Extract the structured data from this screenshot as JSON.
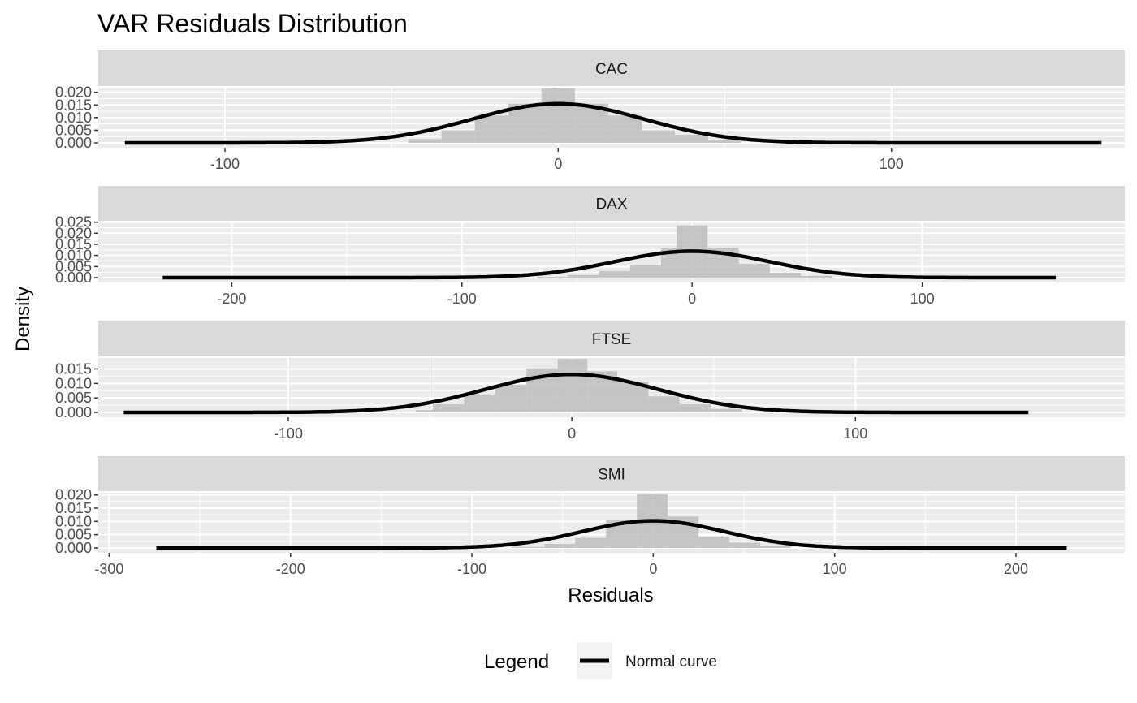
{
  "chart_data": {
    "type": "histogram-facets",
    "title": "VAR Residuals Distribution",
    "xlabel": "Residuals",
    "ylabel": "Density",
    "legend": {
      "title": "Legend",
      "items": [
        {
          "label": "Normal curve",
          "color": "#000000"
        }
      ],
      "position": "bottom"
    },
    "style": {
      "panel_background": "#ebebeb",
      "strip_background": "#d9d9d9",
      "grid_color": "#ffffff",
      "bar_fill": "#bdbdbd",
      "curve_color": "#000000"
    },
    "panels": [
      {
        "name": "CAC",
        "xlim": [
          -138,
          170
        ],
        "ylim": [
          0,
          0.0215
        ],
        "yticks": [
          0.0,
          0.005,
          0.01,
          0.015,
          0.02
        ],
        "ytick_labels": [
          "0.000",
          "0.005",
          "0.010",
          "0.015",
          "0.020"
        ],
        "xticks": [
          -100,
          0,
          100
        ],
        "xtick_labels": [
          "-100",
          "0",
          "100"
        ],
        "bins": [
          {
            "x0": -45,
            "x1": -35,
            "density": 0.0015
          },
          {
            "x0": -35,
            "x1": -25,
            "density": 0.005
          },
          {
            "x0": -25,
            "x1": -15,
            "density": 0.0108
          },
          {
            "x0": -15,
            "x1": -5,
            "density": 0.0155
          },
          {
            "x0": -5,
            "x1": 5,
            "density": 0.0215
          },
          {
            "x0": 5,
            "x1": 15,
            "density": 0.0155
          },
          {
            "x0": 15,
            "x1": 25,
            "density": 0.0108
          },
          {
            "x0": 25,
            "x1": 35,
            "density": 0.005
          },
          {
            "x0": 35,
            "x1": 45,
            "density": 0.0032
          },
          {
            "x0": 45,
            "x1": 55,
            "density": 0.0012
          }
        ],
        "normal": {
          "mean": 0,
          "sd": 25.8,
          "x_range": [
            -130,
            163
          ]
        }
      },
      {
        "name": "DAX",
        "xlim": [
          -258,
          188
        ],
        "ylim": [
          0,
          0.0245
        ],
        "yticks": [
          0.0,
          0.005,
          0.01,
          0.015,
          0.02,
          0.025
        ],
        "ytick_labels": [
          "0.000",
          "0.005",
          "0.010",
          "0.015",
          "0.020",
          "0.025"
        ],
        "xticks": [
          -200,
          -100,
          0,
          100
        ],
        "xtick_labels": [
          "-200",
          "-100",
          "0",
          "100"
        ],
        "bins": [
          {
            "x0": -67.5,
            "x1": -54,
            "density": 0.0004
          },
          {
            "x0": -54,
            "x1": -40.5,
            "density": 0.0012
          },
          {
            "x0": -40.5,
            "x1": -27,
            "density": 0.003
          },
          {
            "x0": -27,
            "x1": -13.5,
            "density": 0.0055
          },
          {
            "x0": -13.5,
            "x1": -6.75,
            "density": 0.0135
          },
          {
            "x0": -6.75,
            "x1": 6.75,
            "density": 0.0235
          },
          {
            "x0": 6.75,
            "x1": 20.25,
            "density": 0.0135
          },
          {
            "x0": 20.25,
            "x1": 33.75,
            "density": 0.0062
          },
          {
            "x0": 33.75,
            "x1": 47.25,
            "density": 0.0022
          },
          {
            "x0": 47.25,
            "x1": 60.75,
            "density": 0.0008
          }
        ],
        "normal": {
          "mean": 0,
          "sd": 33.5,
          "x_range": [
            -230,
            158
          ]
        }
      },
      {
        "name": "FTSE",
        "xlim": [
          -167,
          195
        ],
        "ylim": [
          0,
          0.0185
        ],
        "yticks": [
          0.0,
          0.005,
          0.01,
          0.015
        ],
        "ytick_labels": [
          "0.000",
          "0.005",
          "0.010",
          "0.015"
        ],
        "xticks": [
          -100,
          0,
          100
        ],
        "xtick_labels": [
          "-100",
          "0",
          "100"
        ],
        "bins": [
          {
            "x0": -55,
            "x1": -49,
            "density": 0.0008
          },
          {
            "x0": -49,
            "x1": -38,
            "density": 0.0028
          },
          {
            "x0": -38,
            "x1": -27,
            "density": 0.0062
          },
          {
            "x0": -27,
            "x1": -16,
            "density": 0.0095
          },
          {
            "x0": -16,
            "x1": -5,
            "density": 0.0152
          },
          {
            "x0": -5,
            "x1": 5.5,
            "density": 0.0185
          },
          {
            "x0": 5.5,
            "x1": 16,
            "density": 0.0142
          },
          {
            "x0": 16,
            "x1": 27,
            "density": 0.0105
          },
          {
            "x0": 27,
            "x1": 38,
            "density": 0.0055
          },
          {
            "x0": 38,
            "x1": 49,
            "density": 0.0028
          },
          {
            "x0": 49,
            "x1": 60,
            "density": 0.0012
          }
        ],
        "normal": {
          "mean": 0,
          "sd": 30.4,
          "x_range": [
            -158,
            161
          ]
        }
      },
      {
        "name": "SMI",
        "xlim": [
          -306,
          260
        ],
        "ylim": [
          0,
          0.0205
        ],
        "yticks": [
          0.0,
          0.005,
          0.01,
          0.015,
          0.02
        ],
        "ytick_labels": [
          "0.000",
          "0.005",
          "0.010",
          "0.015",
          "0.020"
        ],
        "xticks": [
          -300,
          -200,
          -100,
          0,
          100,
          200
        ],
        "xtick_labels": [
          "-300",
          "-200",
          "-100",
          "0",
          "100",
          "200"
        ],
        "bins": [
          {
            "x0": -78,
            "x1": -60,
            "density": 0.0004
          },
          {
            "x0": -60,
            "x1": -43,
            "density": 0.0015
          },
          {
            "x0": -43,
            "x1": -26,
            "density": 0.0038
          },
          {
            "x0": -26,
            "x1": -9,
            "density": 0.0105
          },
          {
            "x0": -9,
            "x1": 8,
            "density": 0.0202
          },
          {
            "x0": 8,
            "x1": 25,
            "density": 0.0118
          },
          {
            "x0": 25,
            "x1": 42,
            "density": 0.0042
          },
          {
            "x0": 42,
            "x1": 59,
            "density": 0.002
          },
          {
            "x0": 59,
            "x1": 76,
            "density": 0.0008
          }
        ],
        "normal": {
          "mean": 0,
          "sd": 39,
          "x_range": [
            -274,
            228
          ]
        }
      }
    ]
  }
}
